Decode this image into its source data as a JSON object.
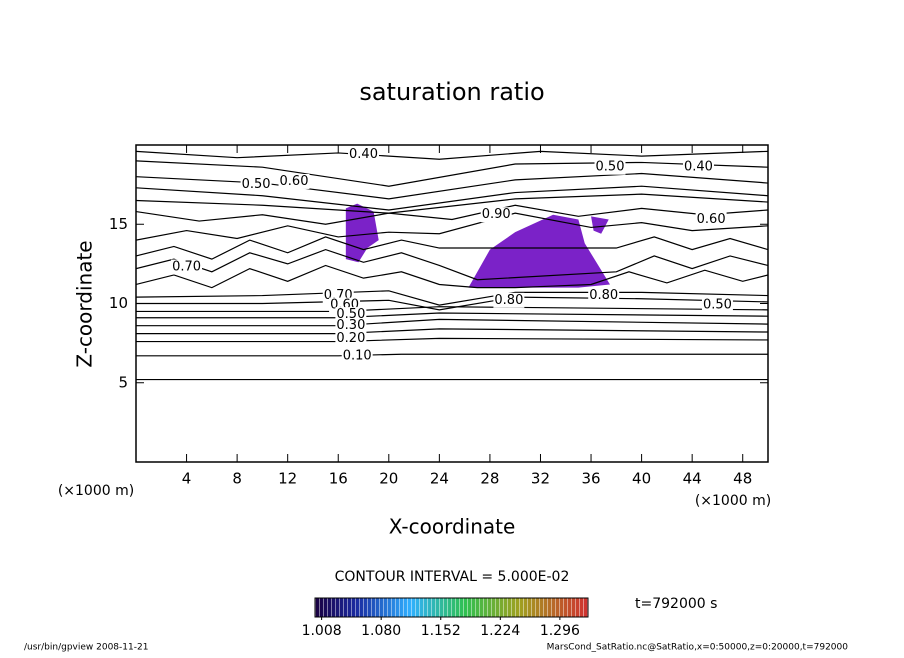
{
  "chart_data": {
    "type": "contour",
    "title": "saturation ratio",
    "x_label": "X-coordinate",
    "y_label": "Z-coordinate",
    "x_unit": "(×1000 m)",
    "y_unit": "(×1000 m)",
    "xlim": [
      0,
      50
    ],
    "ylim": [
      0,
      20
    ],
    "xticks": [
      4,
      8,
      12,
      16,
      20,
      24,
      28,
      32,
      36,
      40,
      44,
      48
    ],
    "yticks": [
      5,
      10,
      15
    ],
    "line_color": "#000000",
    "lines": [
      {
        "x": [
          0,
          50
        ],
        "y": [
          5.2,
          5.2
        ]
      },
      {
        "x": [
          0,
          16,
          21,
          50
        ],
        "y": [
          6.7,
          6.7,
          6.8,
          6.8
        ]
      },
      {
        "x": [
          0,
          16,
          24,
          50
        ],
        "y": [
          7.6,
          7.6,
          7.8,
          7.7
        ]
      },
      {
        "x": [
          0,
          16,
          24,
          50
        ],
        "y": [
          8.1,
          8.1,
          8.4,
          8.2
        ]
      },
      {
        "x": [
          0,
          16,
          24,
          50
        ],
        "y": [
          8.6,
          8.6,
          9.0,
          8.7
        ]
      },
      {
        "x": [
          0,
          16,
          24,
          50
        ],
        "y": [
          9.1,
          9.1,
          9.4,
          9.2
        ]
      },
      {
        "x": [
          0,
          16,
          24,
          50
        ],
        "y": [
          9.5,
          9.5,
          9.8,
          9.6
        ]
      },
      {
        "x": [
          0,
          10,
          20,
          24,
          30,
          40,
          50
        ],
        "y": [
          10.0,
          10.0,
          10.2,
          9.6,
          10.4,
          10.3,
          10.1
        ]
      },
      {
        "x": [
          0,
          10,
          20,
          24,
          30,
          40,
          50
        ],
        "y": [
          10.4,
          10.5,
          10.8,
          9.9,
          10.7,
          10.7,
          10.5
        ]
      },
      {
        "x": [
          0,
          3,
          6,
          9,
          12,
          15,
          18,
          21,
          24,
          27,
          30,
          33,
          36,
          39,
          42,
          45,
          48,
          50
        ],
        "y": [
          11.2,
          11.8,
          11.0,
          12.2,
          11.4,
          12.4,
          11.6,
          12.0,
          11.2,
          11.0,
          11.0,
          11.1,
          11.2,
          12.0,
          11.3,
          12.1,
          11.4,
          11.8
        ]
      },
      {
        "x": [
          0,
          3,
          6,
          9,
          12,
          15,
          18,
          21,
          24,
          27,
          38,
          41,
          44,
          47,
          50
        ],
        "y": [
          12.2,
          12.8,
          12.0,
          13.2,
          12.5,
          13.4,
          12.6,
          13.2,
          12.4,
          11.5,
          12.0,
          13.0,
          12.2,
          13.0,
          12.4
        ]
      },
      {
        "x": [
          0,
          3,
          6,
          9,
          12,
          15,
          18,
          21,
          24,
          38,
          41,
          44,
          47,
          50
        ],
        "y": [
          13.0,
          13.6,
          12.8,
          14.0,
          13.2,
          14.2,
          13.4,
          14.0,
          13.5,
          13.5,
          14.2,
          13.4,
          14.1,
          13.4
        ]
      },
      {
        "x": [
          0,
          4,
          8,
          12,
          16,
          20,
          24,
          30,
          36,
          40,
          44,
          50
        ],
        "y": [
          14.0,
          14.6,
          14.1,
          14.9,
          14.2,
          14.5,
          14.4,
          15.7,
          14.8,
          15.1,
          14.6,
          14.9
        ]
      },
      {
        "x": [
          0,
          5,
          10,
          15,
          20,
          25,
          30,
          35,
          40,
          45,
          50
        ],
        "y": [
          15.8,
          15.2,
          15.6,
          15.0,
          15.7,
          15.3,
          16.2,
          15.5,
          16.0,
          15.6,
          15.9
        ]
      },
      {
        "x": [
          0,
          10,
          20,
          30,
          40,
          50
        ],
        "y": [
          16.5,
          16.2,
          15.7,
          16.6,
          16.9,
          16.4
        ]
      },
      {
        "x": [
          0,
          10,
          20,
          30,
          40,
          50
        ],
        "y": [
          17.3,
          16.8,
          15.9,
          17.0,
          17.4,
          16.8
        ]
      },
      {
        "x": [
          0,
          10,
          20,
          30,
          40,
          50
        ],
        "y": [
          18.0,
          17.6,
          16.6,
          17.8,
          18.2,
          17.6
        ]
      },
      {
        "x": [
          0,
          10,
          20,
          30,
          40,
          50
        ],
        "y": [
          19.0,
          18.6,
          17.4,
          18.8,
          18.9,
          18.6
        ]
      },
      {
        "x": [
          0,
          8,
          16,
          24,
          32,
          40,
          50
        ],
        "y": [
          19.6,
          19.2,
          19.5,
          19.1,
          19.6,
          19.3,
          19.6
        ]
      }
    ],
    "regions": [
      {
        "color": "#7b22c8",
        "x": [
          16.6,
          17.5,
          18.8,
          19.2,
          18.3,
          17.6,
          16.6
        ],
        "y": [
          16.0,
          16.3,
          15.8,
          14.0,
          13.5,
          12.6,
          12.8
        ]
      },
      {
        "color": "#7b22c8",
        "x": [
          26.3,
          28.0,
          30.0,
          33.0,
          35.0,
          35.5,
          37.5,
          35.0,
          30.0,
          26.3
        ],
        "y": [
          11.0,
          13.4,
          14.5,
          15.6,
          15.3,
          13.8,
          11.2,
          11.0,
          11.0,
          11.0
        ]
      },
      {
        "color": "#7b22c8",
        "x": [
          36.0,
          37.4,
          36.8,
          36.2
        ],
        "y": [
          15.5,
          15.3,
          14.4,
          14.6
        ]
      }
    ],
    "annotations": [
      {
        "text": "0.40",
        "x": 18.0,
        "y": 19.4
      },
      {
        "text": "0.50",
        "x": 9.5,
        "y": 17.5
      },
      {
        "text": "0.60",
        "x": 12.5,
        "y": 17.7
      },
      {
        "text": "0.50",
        "x": 37.5,
        "y": 18.6
      },
      {
        "text": "0.40",
        "x": 44.5,
        "y": 18.6
      },
      {
        "text": "0.90",
        "x": 28.5,
        "y": 15.6
      },
      {
        "text": "0.60",
        "x": 45.5,
        "y": 15.3
      },
      {
        "text": "0.70",
        "x": 4.0,
        "y": 12.3
      },
      {
        "text": "0.70",
        "x": 16.0,
        "y": 10.5
      },
      {
        "text": "0.60",
        "x": 16.5,
        "y": 9.9
      },
      {
        "text": "0.50",
        "x": 17.0,
        "y": 9.3
      },
      {
        "text": "0.30",
        "x": 17.0,
        "y": 8.6
      },
      {
        "text": "0.20",
        "x": 17.0,
        "y": 7.8
      },
      {
        "text": "0.10",
        "x": 17.5,
        "y": 6.7
      },
      {
        "text": "0.80",
        "x": 29.5,
        "y": 10.2
      },
      {
        "text": "0.80",
        "x": 37.0,
        "y": 10.5
      },
      {
        "text": "0.50",
        "x": 46.0,
        "y": 9.9
      }
    ],
    "contour_interval": "CONTOUR INTERVAL = 5.000E-02",
    "time_label": "t=792000 s",
    "colorbar": {
      "clim": [
        1.0,
        1.33
      ],
      "ticks": [
        {
          "value": 1.008,
          "label": "1.008"
        },
        {
          "value": 1.08,
          "label": "1.080"
        },
        {
          "value": 1.152,
          "label": "1.152"
        },
        {
          "value": 1.224,
          "label": "1.224"
        },
        {
          "value": 1.296,
          "label": "1.296"
        }
      ]
    },
    "footer_left": "/usr/bin/gpview  2008-11-21",
    "footer_right": "MarsCond_SatRatio.nc@SatRatio,x=0:50000,z=0:20000,t=792000"
  }
}
